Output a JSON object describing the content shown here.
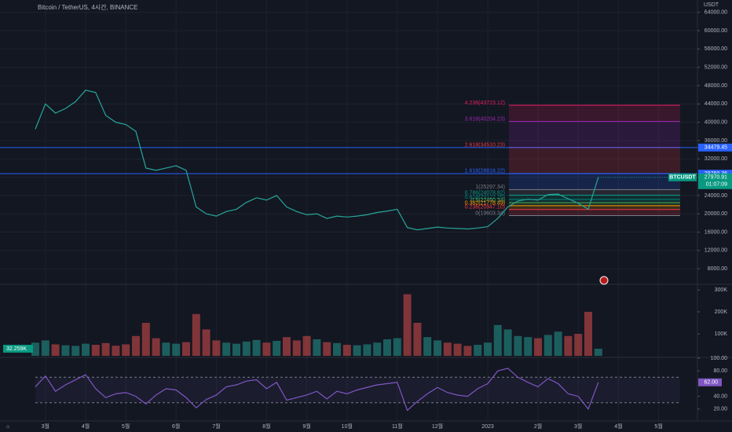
{
  "chart_data": [
    {
      "type": "line",
      "title": "Bitcoin / TetherUS, 4시간, BINANCE",
      "unit": "USDT",
      "color": "#26a69a",
      "categories": [
        null,
        "3월",
        null,
        null,
        null,
        "4월",
        null,
        null,
        null,
        "5월",
        null,
        null,
        null,
        null,
        "6월",
        null,
        null,
        null,
        "7월",
        null,
        null,
        null,
        null,
        "8월",
        null,
        null,
        null,
        "9월",
        null,
        null,
        null,
        "10월",
        null,
        null,
        null,
        null,
        "11월",
        null,
        null,
        null,
        "12월",
        null,
        null,
        null,
        null,
        "2023",
        null,
        null,
        null,
        null,
        "2월",
        null,
        null,
        null,
        "3월",
        null,
        null,
        null,
        "4월",
        null,
        null,
        null,
        "5월",
        null,
        null,
        null
      ],
      "values": [
        38500,
        44000,
        42000,
        43000,
        44500,
        47000,
        46500,
        41500,
        40000,
        39500,
        38000,
        30000,
        29500,
        30000,
        30500,
        29500,
        21500,
        20000,
        19500,
        20500,
        21000,
        22500,
        23500,
        23000,
        24000,
        21500,
        20500,
        19800,
        20000,
        19000,
        19500,
        19300,
        19500,
        19800,
        20300,
        20600,
        21000,
        17000,
        16500,
        16800,
        17100,
        16900,
        16800,
        16700,
        16900,
        17200,
        19000,
        21500,
        22800,
        23200,
        23000,
        24200,
        24300,
        23300,
        22300,
        21000,
        27970.91,
        null,
        null,
        null,
        null,
        null,
        null,
        null,
        null,
        null
      ],
      "ylim": [
        4600,
        66700
      ],
      "yticks": [
        {
          "value": 8000,
          "label": "8000.00"
        },
        {
          "value": 12000,
          "label": "12000.00"
        },
        {
          "value": 16000,
          "label": "16000.00"
        },
        {
          "value": 20000,
          "label": "20000.00"
        },
        {
          "value": 24000,
          "label": "24000.00"
        },
        {
          "value": 28000,
          "label": "28000.00"
        },
        {
          "value": 32000,
          "label": "32000.00"
        },
        {
          "value": 36000,
          "label": "36000.00"
        },
        {
          "value": 40000,
          "label": "40000.00"
        },
        {
          "value": 44000,
          "label": "44000.00"
        },
        {
          "value": 48000,
          "label": "48000.00"
        },
        {
          "value": 52000,
          "label": "52000.00"
        },
        {
          "value": 56000,
          "label": "56000.00"
        },
        {
          "value": 60000,
          "label": "60000.00"
        },
        {
          "value": 64000,
          "label": "64000.00"
        }
      ],
      "grid": true,
      "horizontal_lines": [
        34479.45,
        28760.36
      ],
      "symbol": "BTCUSDT",
      "countdown": "01:07:09",
      "fib_levels": [
        {
          "label": "4.236(43723.12)",
          "value": 43723.12,
          "color": "#e91e63"
        },
        {
          "label": "3.618(40204.23)",
          "value": 40204.23,
          "color": "#9c27b0"
        },
        {
          "label": "2.618(34510.23)",
          "value": 34510.23,
          "color": "#f23645"
        },
        {
          "label": "1.618(28816.22)",
          "value": 28816.22,
          "color": "#2962ff"
        },
        {
          "label": "1(25297.34)",
          "value": 25297.34,
          "color": "#787b86"
        },
        {
          "label": "0.786(24078.82)",
          "value": 24078.82,
          "color": "#089981"
        },
        {
          "label": "0.618(23122.25)",
          "value": 23122.25,
          "color": "#00897b"
        },
        {
          "label": "0.5(22450.34)",
          "value": 22450.34,
          "color": "#4caf50"
        },
        {
          "label": "0.382(21778.49)",
          "value": 21778.49,
          "color": "#ff9800"
        },
        {
          "label": "0.236(20947.10)",
          "value": 20947.1,
          "color": "#f23645"
        },
        {
          "label": "0(19603.34)",
          "value": 19603.34,
          "color": "#787b86"
        }
      ]
    },
    {
      "type": "bar",
      "values": [
        60000,
        70000,
        52000,
        48000,
        45000,
        55000,
        50000,
        58000,
        46000,
        52000,
        90000,
        150000,
        80000,
        60000,
        55000,
        62000,
        190000,
        120000,
        70000,
        60000,
        55000,
        65000,
        72000,
        60000,
        68000,
        85000,
        70000,
        90000,
        75000,
        62000,
        58000,
        50000,
        48000,
        52000,
        60000,
        75000,
        80000,
        280000,
        150000,
        85000,
        70000,
        60000,
        55000,
        45000,
        50000,
        60000,
        140000,
        120000,
        90000,
        85000,
        80000,
        95000,
        110000,
        90000,
        100000,
        200000,
        32259,
        null,
        null,
        null,
        null,
        null,
        null,
        null,
        null,
        null
      ],
      "value_labels": {
        "56": "32.259K"
      },
      "ylim": [
        0,
        325000
      ],
      "yticks": [
        {
          "value": 100000,
          "label": "100K"
        },
        {
          "value": 200000,
          "label": "200K"
        },
        {
          "value": 300000,
          "label": "300K"
        }
      ]
    },
    {
      "type": "line",
      "color": "#7e57c2",
      "values": [
        55,
        72,
        48,
        58,
        66,
        74,
        52,
        38,
        44,
        46,
        40,
        28,
        42,
        52,
        50,
        38,
        22,
        35,
        42,
        55,
        58,
        64,
        66,
        52,
        62,
        34,
        38,
        42,
        48,
        36,
        48,
        44,
        50,
        54,
        58,
        60,
        62,
        18,
        32,
        44,
        54,
        46,
        42,
        40,
        52,
        60,
        80,
        84,
        70,
        62,
        55,
        68,
        60,
        44,
        40,
        20,
        62,
        null,
        null,
        null,
        null,
        null,
        null,
        null,
        null,
        null
      ],
      "value_labels": {
        "56": "62.00"
      },
      "ylim": [
        0,
        100
      ],
      "yticks": [
        {
          "value": 100,
          "label": "100.00"
        },
        {
          "value": 80,
          "label": "80.00"
        },
        {
          "value": 40,
          "label": "40.00"
        },
        {
          "value": 20,
          "label": "20.00"
        }
      ],
      "bands": [
        70,
        30
      ]
    }
  ]
}
